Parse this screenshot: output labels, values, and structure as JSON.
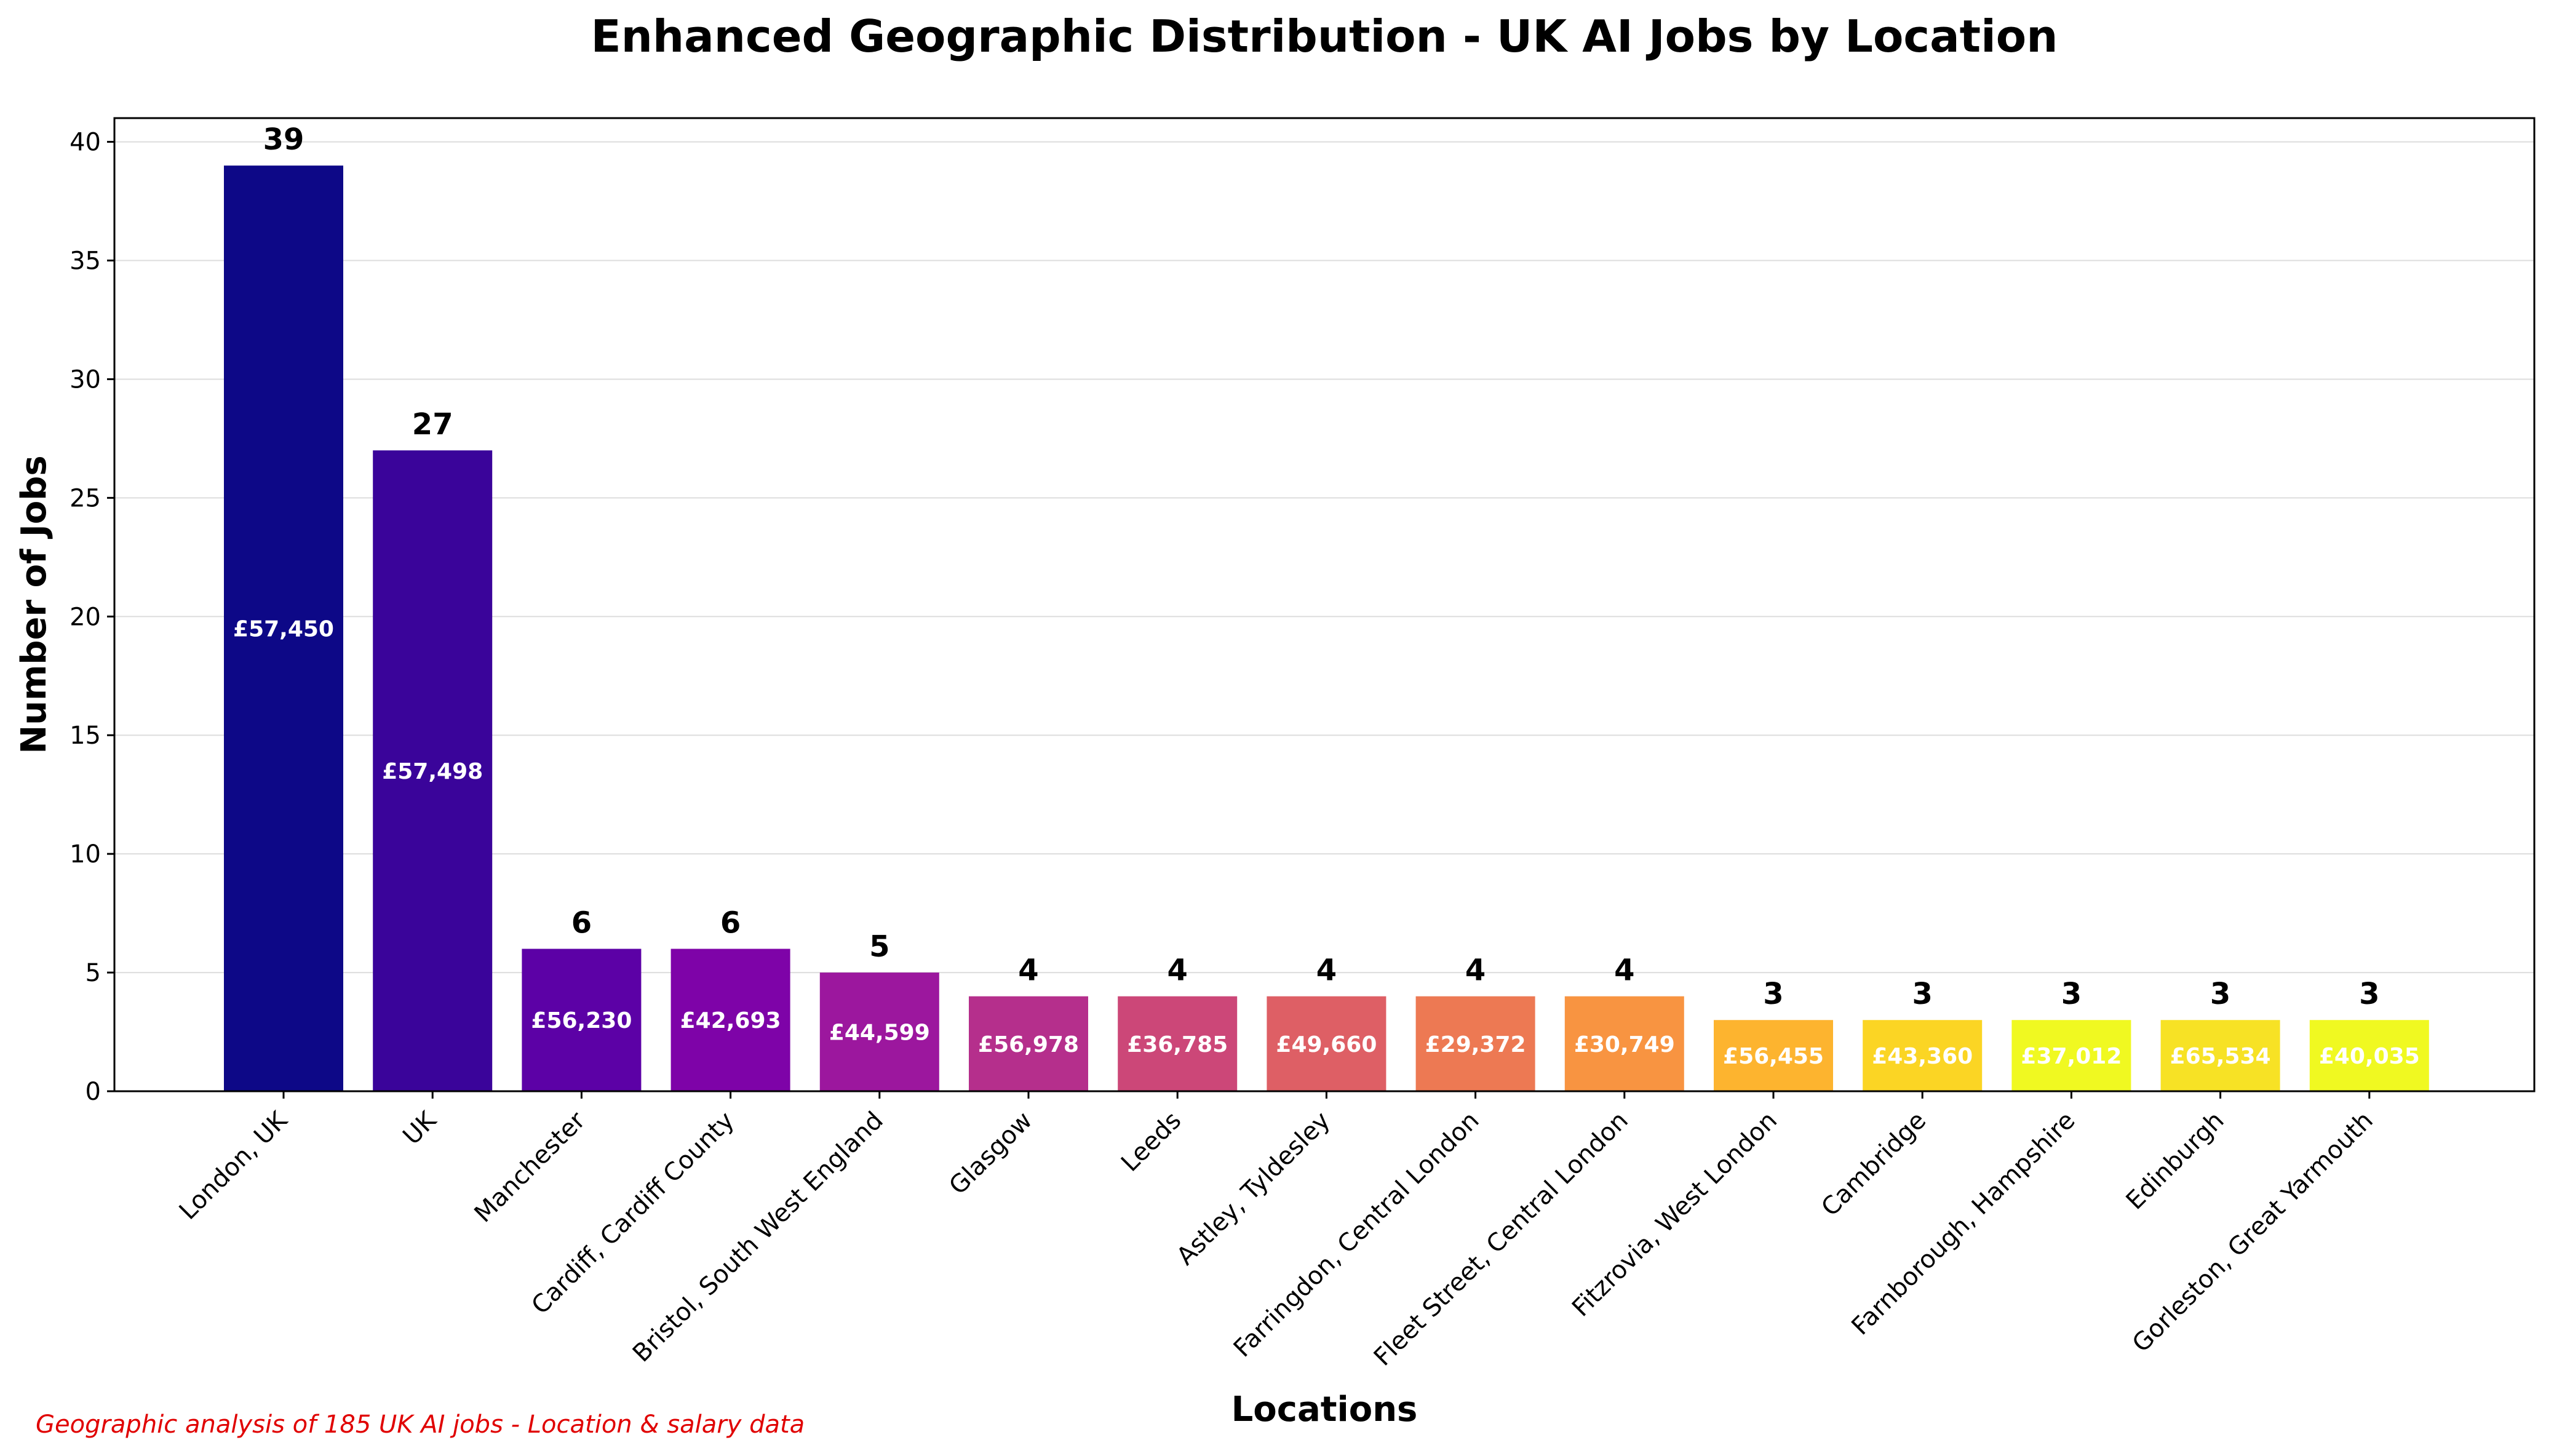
{
  "chart_data": {
    "type": "bar",
    "title": "Enhanced Geographic Distribution - UK AI Jobs by Location",
    "xlabel": "Locations",
    "ylabel": "Number of Jobs",
    "ylim": [
      0,
      41
    ],
    "yticks": [
      0,
      5,
      10,
      15,
      20,
      25,
      30,
      35,
      40
    ],
    "grid": "y",
    "legend": "none",
    "colormap": "plasma",
    "categories": [
      "London, UK",
      "UK",
      "Manchester",
      "Cardiff, Cardiff County",
      "Bristol, South West England",
      "Glasgow",
      "Leeds",
      "Astley, Tyldesley",
      "Farringdon, Central London",
      "Fleet Street, Central London",
      "Fitzrovia, West London",
      "Cambridge",
      "Farnborough, Hampshire",
      "Edinburgh",
      "Gorleston, Great Yarmouth"
    ],
    "values": [
      39,
      27,
      6,
      6,
      5,
      4,
      4,
      4,
      4,
      4,
      3,
      3,
      3,
      3,
      3
    ],
    "salary_labels": [
      "£57,450",
      "£57,498",
      "£56,230",
      "£42,693",
      "£44,599",
      "£56,978",
      "£36,785",
      "£49,660",
      "£29,372",
      "£30,749",
      "£56,455",
      "£43,360",
      "£37,012",
      "£65,534",
      "£40,035"
    ],
    "colors": [
      "#0d0887",
      "#3a049a",
      "#5c01a6",
      "#7e03a8",
      "#9c179e",
      "#b52f8c",
      "#cc4778",
      "#de5f65",
      "#ed7953",
      "#f89441",
      "#fdb42f",
      "#fbd524",
      "#f0f921",
      "#f7e225",
      "#f0f921"
    ],
    "footnote": "Geographic analysis of 185 UK AI jobs - Location & salary data"
  }
}
